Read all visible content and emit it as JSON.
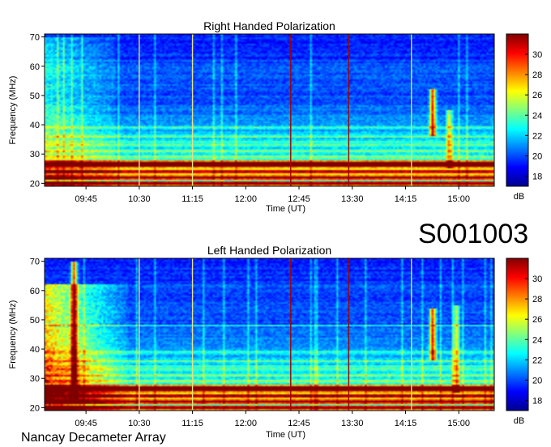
{
  "chart_data": [
    {
      "type": "heatmap",
      "title": "Right Handed Polarization",
      "xlabel": "Time (UT)",
      "ylabel": "Frequency (MHz)",
      "x_ticks": [
        "09:45",
        "10:30",
        "11:15",
        "12:00",
        "12:45",
        "13:30",
        "14:15",
        "15:00"
      ],
      "y_ticks": [
        20,
        30,
        40,
        50,
        60,
        70
      ],
      "ylim": [
        19,
        71
      ],
      "colorbar": {
        "label": "dB",
        "ticks": [
          18,
          20,
          22,
          24,
          26,
          28,
          30
        ],
        "range": [
          17,
          32
        ]
      },
      "features": {
        "intense_bands_mhz": [
          20,
          22,
          24,
          26,
          27
        ],
        "faint_bands_mhz": [
          29,
          31,
          33,
          34,
          36,
          39
        ],
        "bursts": [
          {
            "time": "14:38",
            "freq_range": [
              36,
              52
            ],
            "strength": 1.0
          },
          {
            "time": "14:52",
            "freq_range": [
              25,
              45
            ],
            "strength": 0.55
          }
        ]
      }
    },
    {
      "type": "heatmap",
      "title": "Left Handed Polarization",
      "xlabel": "Time (UT)",
      "ylabel": "Frequency (MHz)",
      "x_ticks": [
        "09:45",
        "10:30",
        "11:15",
        "12:00",
        "12:45",
        "13:30",
        "14:15",
        "15:00"
      ],
      "y_ticks": [
        20,
        30,
        40,
        50,
        60,
        70
      ],
      "ylim": [
        19,
        71
      ],
      "colorbar": {
        "label": "dB",
        "ticks": [
          18,
          20,
          22,
          24,
          26,
          28,
          30
        ],
        "range": [
          17,
          32
        ]
      },
      "features": {
        "intense_bands_mhz": [
          20,
          22,
          24,
          26,
          27
        ],
        "faint_bands_mhz": [
          29,
          31,
          33,
          34,
          36,
          39,
          48
        ],
        "bursts": [
          {
            "time": "14:38",
            "freq_range": [
              36,
              54
            ],
            "strength": 1.0
          },
          {
            "time": "14:58",
            "freq_range": [
              25,
              55
            ],
            "strength": 0.6
          },
          {
            "time": "09:35",
            "freq_range": [
              22,
              70
            ],
            "strength": 1.0
          }
        ]
      }
    }
  ],
  "observation_code": "S001003",
  "credit": "Nancay Decameter Array"
}
